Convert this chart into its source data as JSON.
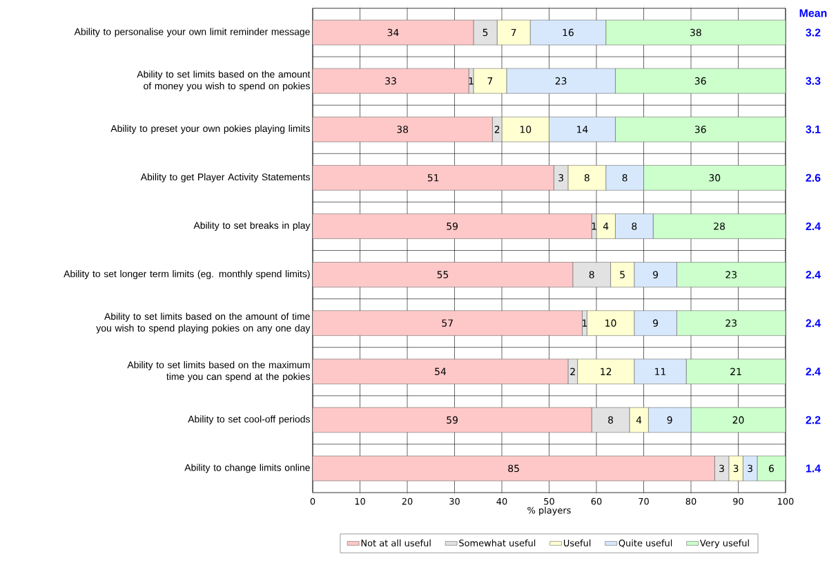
{
  "chart_data": {
    "type": "bar",
    "orientation": "horizontal",
    "stacked": true,
    "data_labels": true,
    "grid": "x",
    "legend": "bottom",
    "xlabel": "% players",
    "categories": [
      "Ability to personalise your own limit reminder message",
      "Ability to set limits based on the amount of money you wish to spend on pokies",
      "Ability to preset your own pokies playing limits",
      "Ability to get Player Activity Statements",
      "Ability to set breaks in play",
      "Ability to set longer term limits (eg. monthly spend limits)",
      "Ability to set limits based on the amount of time you wish to spend playing pokies on any one day",
      "Ability to set limits based on the maximum time you can spend at the pokies",
      "Ability to set cool-off periods",
      "Ability to change limits online"
    ],
    "series": [
      {
        "name": "Not at all useful",
        "color": "#ffc8c8",
        "values": [
          34,
          33,
          38,
          51,
          59,
          55,
          57,
          54,
          59,
          85
        ]
      },
      {
        "name": "Somewhat useful",
        "color": "#e2e2e2",
        "values": [
          5,
          1,
          2,
          3,
          1,
          8,
          1,
          2,
          8,
          3
        ]
      },
      {
        "name": "Useful",
        "color": "#ffffd2",
        "values": [
          7,
          7,
          10,
          8,
          4,
          5,
          10,
          12,
          4,
          3
        ]
      },
      {
        "name": "Quite useful",
        "color": "#d8e8fc",
        "values": [
          16,
          23,
          14,
          8,
          8,
          9,
          9,
          11,
          9,
          3
        ]
      },
      {
        "name": "Very useful",
        "color": "#ccffcc",
        "values": [
          38,
          36,
          36,
          30,
          28,
          23,
          23,
          21,
          20,
          6
        ]
      }
    ],
    "xlim": [
      0,
      100
    ],
    "xticks": [
      0,
      10,
      20,
      30,
      40,
      50,
      60,
      70,
      80,
      90,
      100
    ],
    "annotations": [
      "Mean",
      "3.2",
      "3.3",
      "3.1",
      "2.6",
      "2.4",
      "2.4",
      "2.4",
      "2.4",
      "2.2",
      "1.4"
    ]
  }
}
